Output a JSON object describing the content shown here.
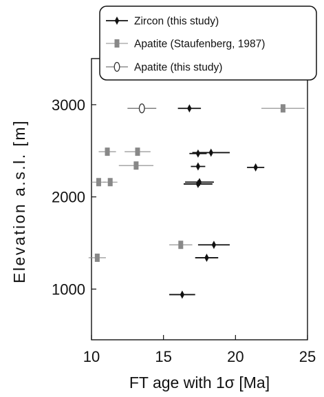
{
  "chart_data": {
    "type": "scatter",
    "xlabel": "FT age with 1σ [Ma]",
    "ylabel": "Elevation a.s.l. [m]",
    "xlim": [
      10,
      25
    ],
    "ylim": [
      450,
      3500
    ],
    "xticks": [
      10,
      15,
      20,
      25
    ],
    "yticks": [
      1000,
      2000,
      3000
    ],
    "grid": false,
    "legend_position": "top-right",
    "series": [
      {
        "name": "Zircon (this study)",
        "marker": "diamond-cross",
        "color": "#111111",
        "points": [
          {
            "x": 16.8,
            "y": 2960,
            "err": 0.8
          },
          {
            "x": 18.3,
            "y": 2480,
            "err": 1.3
          },
          {
            "x": 17.4,
            "y": 2470,
            "err": 0.6
          },
          {
            "x": 17.4,
            "y": 2330,
            "err": 0.5
          },
          {
            "x": 21.4,
            "y": 2320,
            "err": 0.6
          },
          {
            "x": 17.5,
            "y": 2160,
            "err": 1.0
          },
          {
            "x": 17.4,
            "y": 2140,
            "err": 1.0
          },
          {
            "x": 18.5,
            "y": 1480,
            "err": 1.1
          },
          {
            "x": 18.0,
            "y": 1340,
            "err": 0.8
          },
          {
            "x": 16.3,
            "y": 940,
            "err": 0.9
          }
        ]
      },
      {
        "name": "Apatite (Staufenberg, 1987)",
        "marker": "square-bar",
        "color": "#888888",
        "points": [
          {
            "x": 23.3,
            "y": 2960,
            "err": 1.5
          },
          {
            "x": 11.1,
            "y": 2490,
            "err": 0.6
          },
          {
            "x": 13.2,
            "y": 2490,
            "err": 0.9
          },
          {
            "x": 13.1,
            "y": 2340,
            "err": 1.2
          },
          {
            "x": 10.5,
            "y": 2160,
            "err": 0.5
          },
          {
            "x": 11.3,
            "y": 2160,
            "err": 0.5
          },
          {
            "x": 16.2,
            "y": 1480,
            "err": 0.8
          },
          {
            "x": 10.4,
            "y": 1340,
            "err": 0.6
          }
        ]
      },
      {
        "name": "Apatite (this study)",
        "marker": "open-ellipse",
        "color": "#333333",
        "points": [
          {
            "x": 13.5,
            "y": 2960,
            "err": 1.0
          }
        ]
      }
    ]
  }
}
